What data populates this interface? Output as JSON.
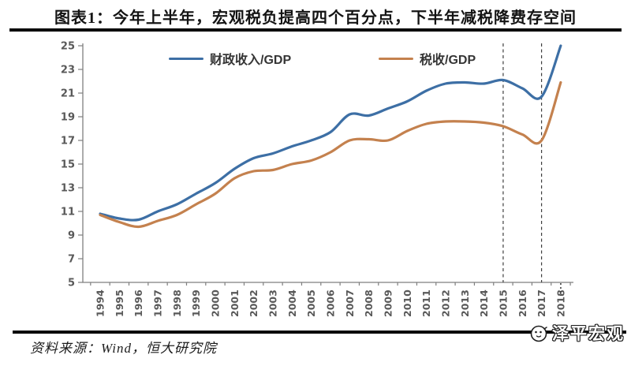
{
  "title": "图表1：今年上半年，宏观税负提高四个百分点，下半年减税降费存空间",
  "footer": {
    "source": "资料来源：Wind，恒大研究院",
    "logo_text": "泽平宏观"
  },
  "colors": {
    "fiscal_line": "#3d6fa5",
    "tax_line": "#c4814e",
    "axis": "#7f7f7f",
    "tick_label": "#595959",
    "dashed_line": "#3f3f3f",
    "title_rule": "#050505"
  },
  "chart_data": {
    "type": "line",
    "x": [
      1994,
      1995,
      1996,
      1997,
      1998,
      1999,
      2000,
      2001,
      2002,
      2003,
      2004,
      2005,
      2006,
      2007,
      2008,
      2009,
      2010,
      2011,
      2012,
      2013,
      2014,
      2015,
      2016,
      2017,
      2018
    ],
    "series": [
      {
        "name": "财政收入/GDP",
        "color": "#3d6fa5",
        "values": [
          10.8,
          10.4,
          10.3,
          11.0,
          11.6,
          12.5,
          13.4,
          14.6,
          15.5,
          15.9,
          16.5,
          17.0,
          17.7,
          19.2,
          19.1,
          19.7,
          20.3,
          21.2,
          21.8,
          21.9,
          21.8,
          22.1,
          21.4,
          20.7,
          25.0
        ]
      },
      {
        "name": "税收/GDP",
        "color": "#c4814e",
        "values": [
          10.7,
          10.1,
          9.7,
          10.2,
          10.7,
          11.6,
          12.5,
          13.8,
          14.4,
          14.5,
          15.0,
          15.3,
          16.0,
          17.0,
          17.1,
          17.0,
          17.8,
          18.4,
          18.6,
          18.6,
          18.5,
          18.2,
          17.5,
          17.0,
          21.9
        ]
      }
    ],
    "ylim": [
      5,
      25
    ],
    "yticks": [
      5,
      7,
      9,
      11,
      13,
      15,
      17,
      19,
      21,
      23,
      25
    ],
    "grid": false,
    "legend_position": "top",
    "annotations": {
      "dashed_vline_years": [
        2015,
        2017
      ],
      "dotted_axis_mark_year": 2018
    }
  }
}
